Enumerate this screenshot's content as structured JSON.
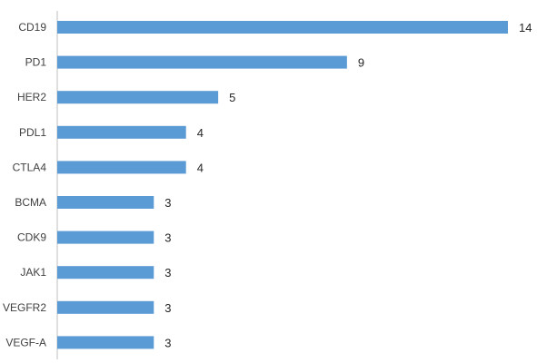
{
  "chart_data": {
    "type": "bar",
    "orientation": "horizontal",
    "categories": [
      "CD19",
      "PD1",
      "HER2",
      "PDL1",
      "CTLA4",
      "BCMA",
      "CDK9",
      "JAK1",
      "VEGFR2",
      "VEGF-A"
    ],
    "values": [
      14,
      9,
      5,
      4,
      4,
      3,
      3,
      3,
      3,
      3
    ],
    "title": "",
    "xlabel": "",
    "ylabel": "",
    "xlim": [
      0,
      14
    ],
    "grid": false,
    "legend": "none",
    "bar_color": "#5B9BD5",
    "axis_color": "#BFBFBF",
    "data_labels": [
      "14",
      "9",
      "5",
      "4",
      "4",
      "3",
      "3",
      "3",
      "3",
      "3"
    ]
  }
}
